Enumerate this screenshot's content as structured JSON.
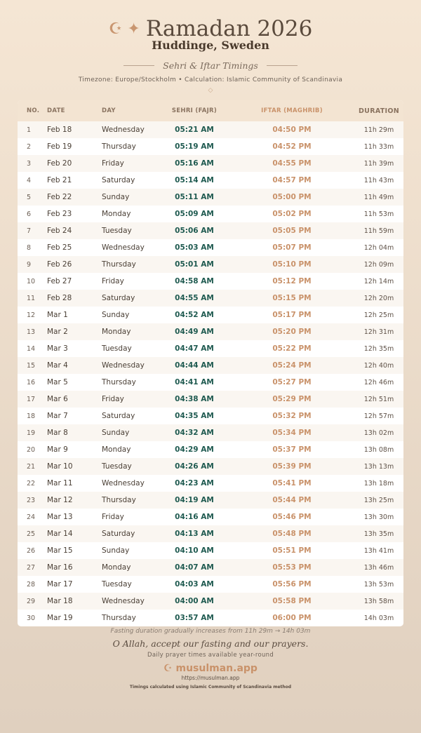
{
  "header": {
    "title": "Ramadan 2026",
    "location": "Huddinge, Sweden",
    "subtitle": "Sehri & Iftar Timings",
    "meta": "Timezone: Europe/Stockholm • Calculation: Islamic Community of Scandinavia",
    "moon_icon": "☪",
    "star_icon": "✦",
    "diamond": "◇"
  },
  "table": {
    "columns": [
      "NO.",
      "DATE",
      "DAY",
      "SEHRI (FAJR)",
      "IFTAR (MAGHRIB)",
      "DURATION"
    ],
    "rows": [
      [
        "1",
        "Feb 18",
        "Wednesday",
        "05:21 AM",
        "04:50 PM",
        "11h 29m"
      ],
      [
        "2",
        "Feb 19",
        "Thursday",
        "05:19 AM",
        "04:52 PM",
        "11h 33m"
      ],
      [
        "3",
        "Feb 20",
        "Friday",
        "05:16 AM",
        "04:55 PM",
        "11h 39m"
      ],
      [
        "4",
        "Feb 21",
        "Saturday",
        "05:14 AM",
        "04:57 PM",
        "11h 43m"
      ],
      [
        "5",
        "Feb 22",
        "Sunday",
        "05:11 AM",
        "05:00 PM",
        "11h 49m"
      ],
      [
        "6",
        "Feb 23",
        "Monday",
        "05:09 AM",
        "05:02 PM",
        "11h 53m"
      ],
      [
        "7",
        "Feb 24",
        "Tuesday",
        "05:06 AM",
        "05:05 PM",
        "11h 59m"
      ],
      [
        "8",
        "Feb 25",
        "Wednesday",
        "05:03 AM",
        "05:07 PM",
        "12h 04m"
      ],
      [
        "9",
        "Feb 26",
        "Thursday",
        "05:01 AM",
        "05:10 PM",
        "12h 09m"
      ],
      [
        "10",
        "Feb 27",
        "Friday",
        "04:58 AM",
        "05:12 PM",
        "12h 14m"
      ],
      [
        "11",
        "Feb 28",
        "Saturday",
        "04:55 AM",
        "05:15 PM",
        "12h 20m"
      ],
      [
        "12",
        "Mar 1",
        "Sunday",
        "04:52 AM",
        "05:17 PM",
        "12h 25m"
      ],
      [
        "13",
        "Mar 2",
        "Monday",
        "04:49 AM",
        "05:20 PM",
        "12h 31m"
      ],
      [
        "14",
        "Mar 3",
        "Tuesday",
        "04:47 AM",
        "05:22 PM",
        "12h 35m"
      ],
      [
        "15",
        "Mar 4",
        "Wednesday",
        "04:44 AM",
        "05:24 PM",
        "12h 40m"
      ],
      [
        "16",
        "Mar 5",
        "Thursday",
        "04:41 AM",
        "05:27 PM",
        "12h 46m"
      ],
      [
        "17",
        "Mar 6",
        "Friday",
        "04:38 AM",
        "05:29 PM",
        "12h 51m"
      ],
      [
        "18",
        "Mar 7",
        "Saturday",
        "04:35 AM",
        "05:32 PM",
        "12h 57m"
      ],
      [
        "19",
        "Mar 8",
        "Sunday",
        "04:32 AM",
        "05:34 PM",
        "13h 02m"
      ],
      [
        "20",
        "Mar 9",
        "Monday",
        "04:29 AM",
        "05:37 PM",
        "13h 08m"
      ],
      [
        "21",
        "Mar 10",
        "Tuesday",
        "04:26 AM",
        "05:39 PM",
        "13h 13m"
      ],
      [
        "22",
        "Mar 11",
        "Wednesday",
        "04:23 AM",
        "05:41 PM",
        "13h 18m"
      ],
      [
        "23",
        "Mar 12",
        "Thursday",
        "04:19 AM",
        "05:44 PM",
        "13h 25m"
      ],
      [
        "24",
        "Mar 13",
        "Friday",
        "04:16 AM",
        "05:46 PM",
        "13h 30m"
      ],
      [
        "25",
        "Mar 14",
        "Saturday",
        "04:13 AM",
        "05:48 PM",
        "13h 35m"
      ],
      [
        "26",
        "Mar 15",
        "Sunday",
        "04:10 AM",
        "05:51 PM",
        "13h 41m"
      ],
      [
        "27",
        "Mar 16",
        "Monday",
        "04:07 AM",
        "05:53 PM",
        "13h 46m"
      ],
      [
        "28",
        "Mar 17",
        "Tuesday",
        "04:03 AM",
        "05:56 PM",
        "13h 53m"
      ],
      [
        "29",
        "Mar 18",
        "Wednesday",
        "04:00 AM",
        "05:58 PM",
        "13h 58m"
      ],
      [
        "30",
        "Mar 19",
        "Thursday",
        "03:57 AM",
        "06:00 PM",
        "14h 03m"
      ]
    ]
  },
  "footer": {
    "note": "Fasting duration gradually increases from 11h 29m → 14h 03m",
    "dua": "O Allah, accept our fasting and our prayers.",
    "daily": "Daily prayer times available year-round",
    "brand_icon": "☪",
    "brand": "musulman.app",
    "url": "https://musulman.app",
    "calc": "Timings calculated using Islamic Community of Scandinavia method"
  },
  "colors": {
    "sehri": "#1f5a50",
    "iftar": "#c9926a",
    "accent": "#c99670"
  }
}
